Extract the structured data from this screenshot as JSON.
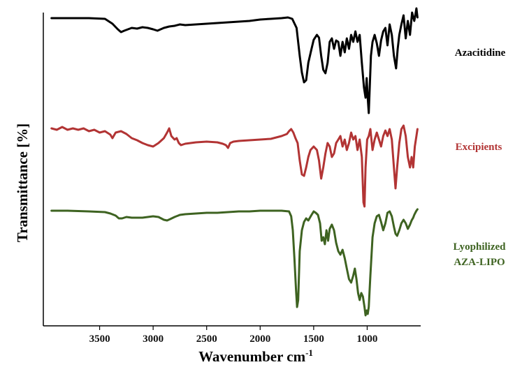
{
  "chart_data": {
    "type": "line",
    "xlabel": "Wavenumber cm",
    "xlabel_sup": "-1",
    "ylabel": "Transmittance [%]",
    "x_axis_reversed": true,
    "xlim": [
      4000,
      500
    ],
    "x_ticks": [
      3500,
      3000,
      2500,
      2000,
      1500,
      1000
    ],
    "y_ticks_shown": false,
    "grid": false,
    "legend_placement": "right, labels beside each curve",
    "series": [
      {
        "name": "Azacitidine",
        "color": "#000000",
        "points": [
          [
            3950,
            26
          ],
          [
            3800,
            26
          ],
          [
            3600,
            26
          ],
          [
            3450,
            27
          ],
          [
            3380,
            34
          ],
          [
            3330,
            42
          ],
          [
            3300,
            46
          ],
          [
            3270,
            44
          ],
          [
            3200,
            40
          ],
          [
            3150,
            41
          ],
          [
            3100,
            39
          ],
          [
            3050,
            40
          ],
          [
            3000,
            42
          ],
          [
            2960,
            44
          ],
          [
            2900,
            40
          ],
          [
            2850,
            38
          ],
          [
            2800,
            37
          ],
          [
            2750,
            35
          ],
          [
            2700,
            36
          ],
          [
            2600,
            35
          ],
          [
            2500,
            34
          ],
          [
            2400,
            33
          ],
          [
            2300,
            32
          ],
          [
            2200,
            31
          ],
          [
            2100,
            30
          ],
          [
            2000,
            28
          ],
          [
            1900,
            27
          ],
          [
            1800,
            26
          ],
          [
            1740,
            25
          ],
          [
            1700,
            27
          ],
          [
            1660,
            40
          ],
          [
            1630,
            80
          ],
          [
            1610,
            104
          ],
          [
            1590,
            118
          ],
          [
            1570,
            115
          ],
          [
            1550,
            90
          ],
          [
            1520,
            70
          ],
          [
            1500,
            57
          ],
          [
            1470,
            50
          ],
          [
            1450,
            54
          ],
          [
            1430,
            80
          ],
          [
            1410,
            100
          ],
          [
            1390,
            105
          ],
          [
            1370,
            90
          ],
          [
            1350,
            60
          ],
          [
            1330,
            55
          ],
          [
            1310,
            70
          ],
          [
            1290,
            58
          ],
          [
            1270,
            60
          ],
          [
            1250,
            80
          ],
          [
            1230,
            60
          ],
          [
            1210,
            75
          ],
          [
            1190,
            55
          ],
          [
            1170,
            70
          ],
          [
            1150,
            50
          ],
          [
            1130,
            60
          ],
          [
            1110,
            45
          ],
          [
            1090,
            60
          ],
          [
            1070,
            50
          ],
          [
            1050,
            90
          ],
          [
            1030,
            125
          ],
          [
            1015,
            140
          ],
          [
            1005,
            112
          ],
          [
            995,
            140
          ],
          [
            985,
            162
          ],
          [
            975,
            120
          ],
          [
            965,
            80
          ],
          [
            950,
            60
          ],
          [
            930,
            50
          ],
          [
            910,
            62
          ],
          [
            890,
            80
          ],
          [
            870,
            58
          ],
          [
            850,
            45
          ],
          [
            830,
            40
          ],
          [
            810,
            65
          ],
          [
            790,
            35
          ],
          [
            770,
            50
          ],
          [
            750,
            80
          ],
          [
            730,
            98
          ],
          [
            715,
            70
          ],
          [
            700,
            50
          ],
          [
            680,
            35
          ],
          [
            660,
            22
          ],
          [
            640,
            55
          ],
          [
            620,
            30
          ],
          [
            600,
            50
          ],
          [
            580,
            18
          ],
          [
            560,
            30
          ],
          [
            550,
            22
          ],
          [
            540,
            12
          ],
          [
            530,
            25
          ]
        ]
      },
      {
        "name": "Excipients",
        "color": "#b23434",
        "points": [
          [
            3950,
            184
          ],
          [
            3900,
            186
          ],
          [
            3850,
            182
          ],
          [
            3800,
            186
          ],
          [
            3750,
            184
          ],
          [
            3700,
            186
          ],
          [
            3650,
            184
          ],
          [
            3600,
            188
          ],
          [
            3550,
            186
          ],
          [
            3500,
            190
          ],
          [
            3450,
            188
          ],
          [
            3400,
            193
          ],
          [
            3380,
            198
          ],
          [
            3350,
            190
          ],
          [
            3300,
            188
          ],
          [
            3250,
            192
          ],
          [
            3200,
            198
          ],
          [
            3150,
            201
          ],
          [
            3100,
            205
          ],
          [
            3050,
            208
          ],
          [
            3000,
            210
          ],
          [
            2950,
            205
          ],
          [
            2900,
            198
          ],
          [
            2870,
            190
          ],
          [
            2850,
            184
          ],
          [
            2830,
            195
          ],
          [
            2800,
            200
          ],
          [
            2780,
            198
          ],
          [
            2760,
            205
          ],
          [
            2740,
            208
          ],
          [
            2700,
            206
          ],
          [
            2600,
            204
          ],
          [
            2500,
            203
          ],
          [
            2400,
            204
          ],
          [
            2350,
            206
          ],
          [
            2320,
            208
          ],
          [
            2300,
            212
          ],
          [
            2280,
            205
          ],
          [
            2250,
            203
          ],
          [
            2200,
            202
          ],
          [
            2100,
            201
          ],
          [
            2000,
            200
          ],
          [
            1900,
            199
          ],
          [
            1800,
            195
          ],
          [
            1750,
            192
          ],
          [
            1730,
            188
          ],
          [
            1710,
            185
          ],
          [
            1690,
            190
          ],
          [
            1670,
            198
          ],
          [
            1650,
            205
          ],
          [
            1630,
            230
          ],
          [
            1610,
            250
          ],
          [
            1590,
            252
          ],
          [
            1570,
            240
          ],
          [
            1550,
            225
          ],
          [
            1530,
            215
          ],
          [
            1500,
            210
          ],
          [
            1470,
            215
          ],
          [
            1450,
            230
          ],
          [
            1430,
            256
          ],
          [
            1410,
            240
          ],
          [
            1390,
            220
          ],
          [
            1370,
            205
          ],
          [
            1350,
            210
          ],
          [
            1330,
            225
          ],
          [
            1310,
            220
          ],
          [
            1290,
            205
          ],
          [
            1270,
            200
          ],
          [
            1250,
            195
          ],
          [
            1230,
            210
          ],
          [
            1210,
            200
          ],
          [
            1190,
            215
          ],
          [
            1170,
            205
          ],
          [
            1150,
            190
          ],
          [
            1130,
            200
          ],
          [
            1110,
            195
          ],
          [
            1090,
            215
          ],
          [
            1070,
            200
          ],
          [
            1050,
            225
          ],
          [
            1035,
            290
          ],
          [
            1025,
            296
          ],
          [
            1015,
            240
          ],
          [
            1000,
            200
          ],
          [
            985,
            195
          ],
          [
            970,
            185
          ],
          [
            950,
            215
          ],
          [
            930,
            200
          ],
          [
            910,
            190
          ],
          [
            890,
            200
          ],
          [
            870,
            210
          ],
          [
            850,
            195
          ],
          [
            830,
            187
          ],
          [
            810,
            195
          ],
          [
            790,
            185
          ],
          [
            770,
            200
          ],
          [
            750,
            240
          ],
          [
            735,
            270
          ],
          [
            720,
            240
          ],
          [
            700,
            205
          ],
          [
            680,
            185
          ],
          [
            660,
            180
          ],
          [
            640,
            195
          ],
          [
            620,
            225
          ],
          [
            600,
            240
          ],
          [
            585,
            225
          ],
          [
            570,
            240
          ],
          [
            555,
            210
          ],
          [
            540,
            195
          ],
          [
            530,
            185
          ]
        ]
      },
      {
        "name": "Lyophilized\nAZA-LIPO",
        "color": "#3e6321",
        "points": [
          [
            3950,
            302
          ],
          [
            3800,
            302
          ],
          [
            3600,
            303
          ],
          [
            3450,
            304
          ],
          [
            3400,
            306
          ],
          [
            3350,
            309
          ],
          [
            3320,
            313
          ],
          [
            3290,
            313
          ],
          [
            3250,
            311
          ],
          [
            3200,
            312
          ],
          [
            3100,
            312
          ],
          [
            3000,
            310
          ],
          [
            2950,
            311
          ],
          [
            2900,
            315
          ],
          [
            2870,
            316
          ],
          [
            2840,
            314
          ],
          [
            2800,
            311
          ],
          [
            2750,
            308
          ],
          [
            2700,
            307
          ],
          [
            2600,
            306
          ],
          [
            2500,
            305
          ],
          [
            2400,
            305
          ],
          [
            2300,
            304
          ],
          [
            2200,
            303
          ],
          [
            2100,
            303
          ],
          [
            2000,
            302
          ],
          [
            1900,
            302
          ],
          [
            1800,
            302
          ],
          [
            1730,
            303
          ],
          [
            1710,
            310
          ],
          [
            1695,
            330
          ],
          [
            1680,
            370
          ],
          [
            1665,
            415
          ],
          [
            1655,
            440
          ],
          [
            1645,
            430
          ],
          [
            1630,
            360
          ],
          [
            1610,
            330
          ],
          [
            1590,
            318
          ],
          [
            1570,
            313
          ],
          [
            1550,
            316
          ],
          [
            1520,
            308
          ],
          [
            1500,
            303
          ],
          [
            1480,
            305
          ],
          [
            1460,
            308
          ],
          [
            1440,
            320
          ],
          [
            1425,
            345
          ],
          [
            1410,
            340
          ],
          [
            1395,
            350
          ],
          [
            1380,
            330
          ],
          [
            1365,
            345
          ],
          [
            1350,
            328
          ],
          [
            1330,
            322
          ],
          [
            1310,
            330
          ],
          [
            1290,
            348
          ],
          [
            1270,
            360
          ],
          [
            1250,
            365
          ],
          [
            1230,
            358
          ],
          [
            1210,
            370
          ],
          [
            1190,
            385
          ],
          [
            1170,
            400
          ],
          [
            1150,
            405
          ],
          [
            1130,
            395
          ],
          [
            1115,
            385
          ],
          [
            1100,
            400
          ],
          [
            1085,
            420
          ],
          [
            1070,
            430
          ],
          [
            1055,
            420
          ],
          [
            1040,
            425
          ],
          [
            1025,
            440
          ],
          [
            1015,
            452
          ],
          [
            1005,
            445
          ],
          [
            995,
            450
          ],
          [
            985,
            440
          ],
          [
            970,
            395
          ],
          [
            950,
            340
          ],
          [
            930,
            320
          ],
          [
            910,
            310
          ],
          [
            890,
            308
          ],
          [
            870,
            318
          ],
          [
            850,
            330
          ],
          [
            830,
            320
          ],
          [
            810,
            305
          ],
          [
            790,
            303
          ],
          [
            770,
            310
          ],
          [
            750,
            325
          ],
          [
            735,
            335
          ],
          [
            720,
            338
          ],
          [
            700,
            330
          ],
          [
            680,
            320
          ],
          [
            660,
            315
          ],
          [
            640,
            320
          ],
          [
            620,
            328
          ],
          [
            600,
            322
          ],
          [
            585,
            316
          ],
          [
            570,
            312
          ],
          [
            560,
            308
          ],
          [
            550,
            305
          ],
          [
            540,
            302
          ],
          [
            530,
            300
          ]
        ]
      }
    ]
  }
}
